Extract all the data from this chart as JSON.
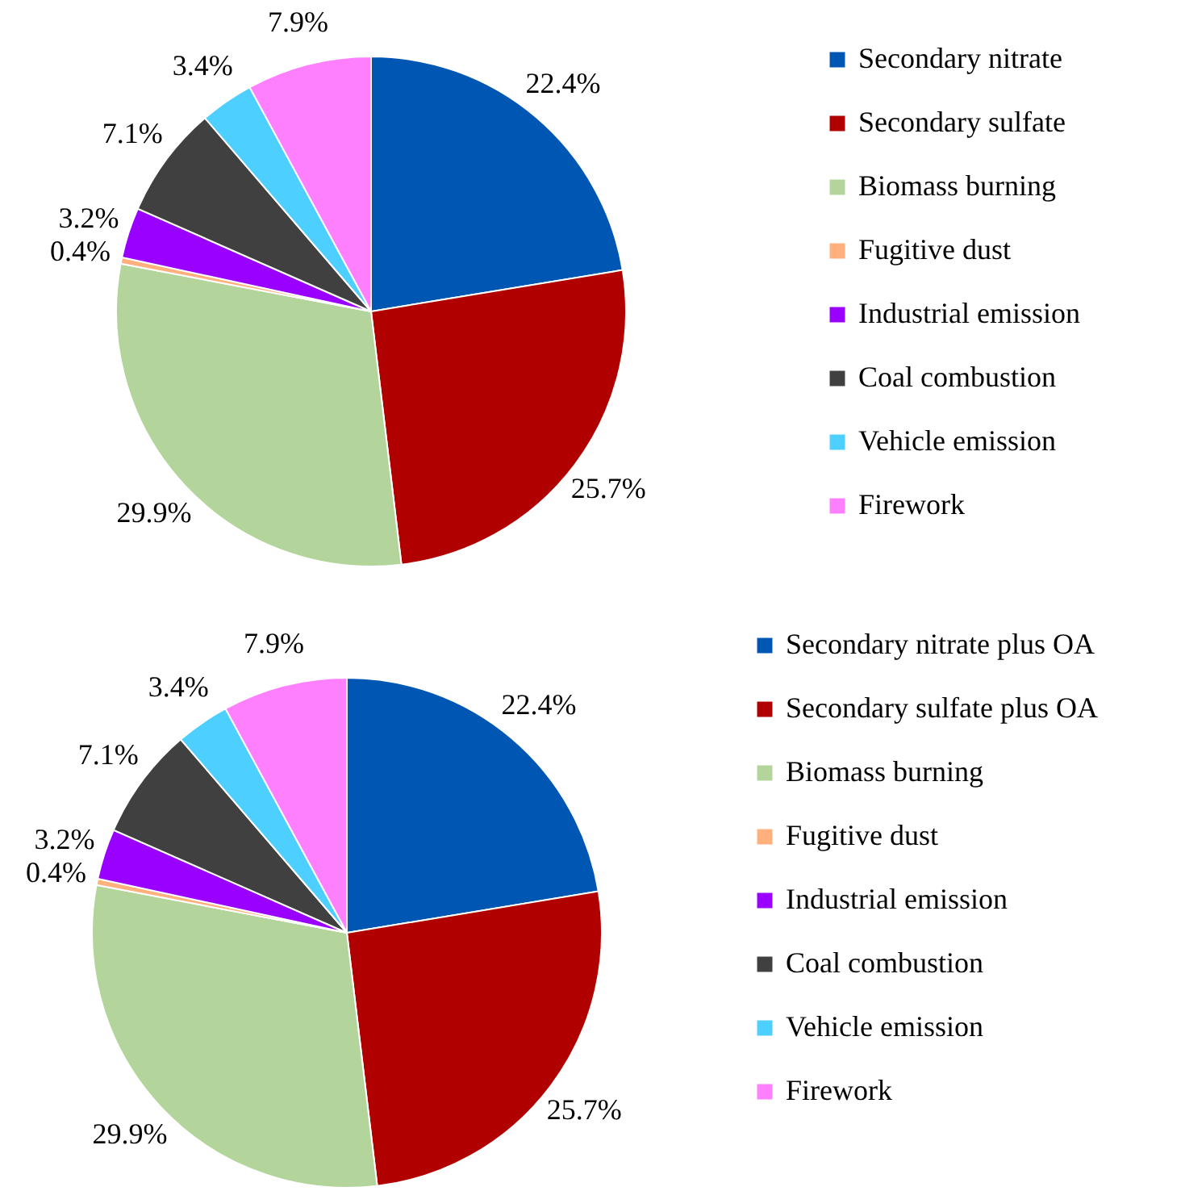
{
  "chart_data": [
    {
      "type": "pie",
      "categories": [
        "Secondary nitrate",
        "Secondary sulfate",
        "Biomass burning",
        "Fugitive dust",
        "Industrial emission",
        "Coal combustion",
        "Vehicle emission",
        "Firework"
      ],
      "values": [
        22.4,
        25.7,
        29.9,
        0.4,
        3.2,
        7.1,
        3.4,
        7.9
      ],
      "value_labels": [
        "22.4%",
        "25.7%",
        "29.9%",
        "0.4%",
        "3.2%",
        "7.1%",
        "3.4%",
        "7.9%"
      ],
      "colors": [
        "#0056b3",
        "#b00000",
        "#b3d59c",
        "#ffb07c",
        "#9a00ff",
        "#404040",
        "#4dcfff",
        "#ff80ff"
      ],
      "legend": "right"
    },
    {
      "type": "pie",
      "categories": [
        "Secondary nitrate plus OA",
        "Secondary sulfate plus OA",
        "Biomass burning",
        "Fugitive dust",
        "Industrial emission",
        "Coal combustion",
        "Vehicle emission",
        "Firework"
      ],
      "values": [
        22.4,
        25.7,
        29.9,
        0.4,
        3.2,
        7.1,
        3.4,
        7.9
      ],
      "value_labels": [
        "22.4%",
        "25.7%",
        "29.9%",
        "0.4%",
        "3.2%",
        "7.1%",
        "3.4%",
        "7.9%"
      ],
      "colors": [
        "#0056b3",
        "#b00000",
        "#b3d59c",
        "#ffb07c",
        "#9a00ff",
        "#404040",
        "#4dcfff",
        "#ff80ff"
      ],
      "legend": "right"
    }
  ]
}
